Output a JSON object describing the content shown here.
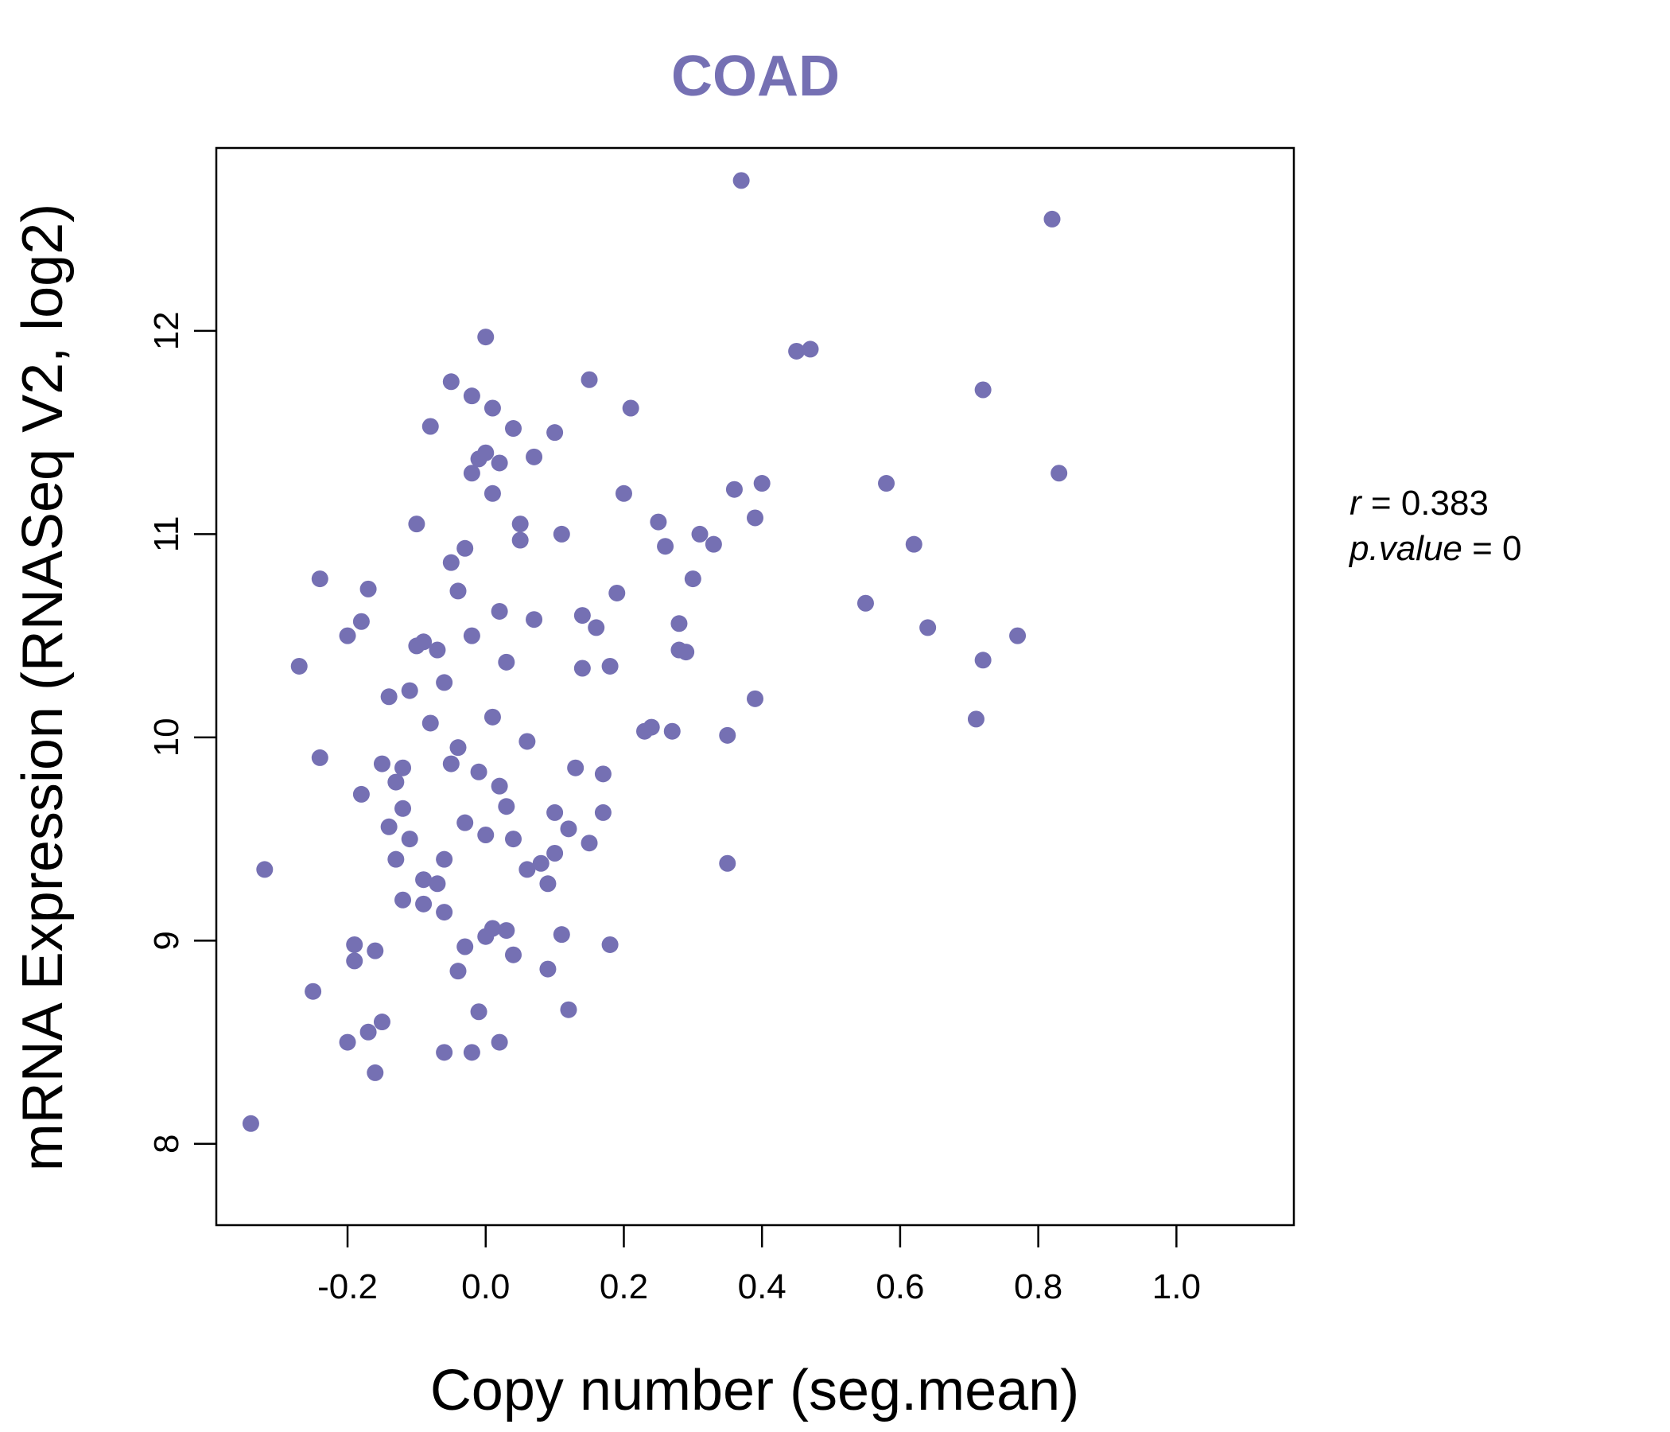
{
  "chart_data": {
    "type": "scatter",
    "title": "COAD",
    "xlabel": "Copy number (seg.mean)",
    "ylabel": "mRNA Expression (RNASeq V2, log2)",
    "xlim": [
      -0.39,
      1.17
    ],
    "ylim": [
      7.6,
      12.9
    ],
    "x_ticks": [
      -0.2,
      0.0,
      0.2,
      0.4,
      0.6,
      0.8,
      1.0
    ],
    "x_tick_labels": [
      "-0.2",
      "0.0",
      "0.2",
      "0.4",
      "0.6",
      "0.8",
      "1.0"
    ],
    "y_ticks": [
      8,
      9,
      10,
      11,
      12
    ],
    "y_tick_labels": [
      "8",
      "9",
      "10",
      "11",
      "12"
    ],
    "stats": {
      "r_label": "r",
      "r_value": "0.383",
      "p_label": "p.value",
      "p_value": "0"
    },
    "color": "#7570b3",
    "series": [
      {
        "name": "COAD",
        "x": [
          -0.34,
          -0.32,
          -0.27,
          -0.25,
          -0.24,
          -0.24,
          -0.2,
          -0.19,
          -0.18,
          -0.18,
          -0.17,
          -0.17,
          -0.16,
          -0.15,
          -0.15,
          -0.14,
          -0.14,
          -0.13,
          -0.13,
          -0.12,
          -0.12,
          -0.11,
          -0.11,
          -0.1,
          -0.1,
          -0.09,
          -0.09,
          -0.08,
          -0.08,
          -0.07,
          -0.07,
          -0.06,
          -0.06,
          -0.05,
          -0.05,
          -0.04,
          -0.04,
          -0.03,
          -0.03,
          -0.02,
          -0.02,
          -0.01,
          -0.01,
          0.0,
          0.0,
          0.01,
          0.01,
          0.02,
          0.02,
          0.03,
          0.03,
          0.04,
          0.05,
          0.05,
          0.06,
          0.07,
          0.08,
          0.09,
          0.1,
          0.1,
          0.11,
          0.12,
          0.13,
          0.14,
          0.15,
          0.16,
          0.17,
          0.18,
          0.19,
          0.2,
          0.21,
          0.23,
          0.25,
          0.26,
          0.27,
          0.28,
          0.29,
          0.3,
          0.31,
          0.33,
          0.35,
          0.36,
          0.37,
          0.39,
          0.4,
          0.45,
          0.47,
          0.55,
          0.58,
          0.62,
          0.64,
          0.71,
          0.72,
          0.72,
          0.77,
          0.82,
          0.83,
          -0.2,
          -0.19,
          -0.16,
          -0.12,
          -0.09,
          -0.06,
          -0.04,
          -0.02,
          -0.01,
          0.0,
          0.02,
          0.03,
          0.06,
          0.11,
          0.14,
          0.17,
          0.24,
          0.28,
          0.35,
          0.39,
          -0.06,
          -0.03,
          0.01,
          0.04,
          0.09,
          0.1,
          0.12,
          0.18,
          0.0,
          0.02,
          -0.05,
          -0.02,
          0.01,
          0.04,
          0.07,
          0.15
        ],
        "y": [
          8.1,
          9.35,
          10.35,
          8.75,
          9.9,
          10.78,
          10.5,
          8.9,
          9.72,
          10.57,
          8.55,
          10.73,
          8.35,
          8.6,
          9.87,
          9.56,
          10.2,
          9.4,
          9.78,
          9.2,
          9.65,
          9.5,
          10.23,
          10.45,
          11.05,
          9.3,
          10.47,
          10.07,
          11.53,
          9.28,
          10.43,
          10.27,
          9.4,
          9.87,
          10.86,
          9.95,
          10.72,
          9.58,
          10.93,
          10.5,
          11.3,
          9.83,
          11.37,
          9.52,
          11.4,
          10.1,
          11.2,
          9.76,
          10.62,
          9.66,
          10.37,
          9.5,
          11.05,
          10.97,
          9.98,
          10.58,
          9.38,
          9.28,
          11.5,
          9.63,
          11.0,
          9.55,
          9.85,
          10.6,
          9.48,
          10.54,
          9.82,
          10.35,
          10.71,
          11.2,
          11.62,
          10.03,
          11.06,
          10.94,
          10.03,
          10.56,
          10.42,
          10.78,
          11.0,
          10.95,
          9.38,
          11.22,
          12.74,
          11.08,
          11.25,
          11.9,
          11.91,
          10.66,
          11.25,
          10.95,
          10.54,
          10.09,
          11.71,
          10.38,
          10.5,
          12.55,
          11.3,
          8.5,
          8.98,
          8.95,
          9.85,
          9.18,
          8.45,
          8.85,
          8.45,
          8.65,
          9.02,
          8.5,
          9.05,
          9.35,
          9.03,
          10.34,
          9.63,
          10.05,
          10.43,
          10.01,
          10.19,
          9.14,
          8.97,
          9.06,
          8.93,
          8.86,
          9.43,
          8.66,
          8.98,
          11.97,
          11.35,
          11.75,
          11.68,
          11.62,
          11.52,
          11.38,
          11.76
        ]
      }
    ]
  }
}
